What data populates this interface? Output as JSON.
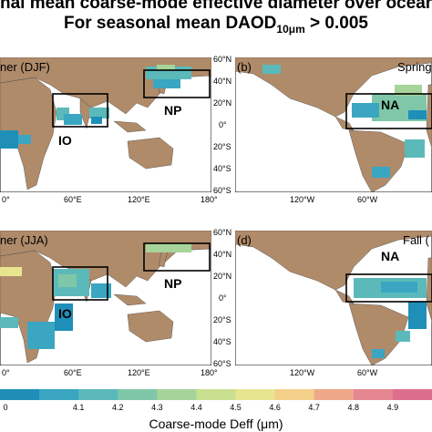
{
  "title_line1": "nal mean coarse-mode effective diameter over oceans",
  "title_line2_prefix": "For seasonal mean DAOD",
  "title_line2_sub": "10μm",
  "title_line2_suffix": " > 0.005",
  "panels": {
    "a": {
      "label": "ner (DJF)",
      "x_ticks": [
        "0°",
        "60°E",
        "120°E",
        "180°"
      ],
      "regions": [
        "IO",
        "NP"
      ]
    },
    "b": {
      "label": "(b)",
      "label2": "Spring",
      "x_ticks": [
        "120°W",
        "60°W"
      ],
      "regions": [
        "NA"
      ],
      "y_ticks": [
        "60°N",
        "40°N",
        "20°N",
        "0°",
        "20°S",
        "40°S",
        "60°S"
      ]
    },
    "c": {
      "label": "ner (JJA)",
      "x_ticks": [
        "0°",
        "60°E",
        "120°E",
        "180°"
      ],
      "regions": [
        "IO",
        "NP"
      ]
    },
    "d": {
      "label": "(d)",
      "label2": "Fall (",
      "x_ticks": [
        "120°W",
        "60°W"
      ],
      "regions": [
        "NA"
      ],
      "y_ticks": [
        "60°N",
        "40°N",
        "20°N",
        "0°",
        "20°S",
        "40°S",
        "60°S"
      ]
    }
  },
  "colorbar": {
    "ticks": [
      "0",
      "4.1",
      "4.2",
      "4.3",
      "4.4",
      "4.5",
      "4.6",
      "4.7",
      "4.8",
      "4.9"
    ],
    "colors": [
      "#1f8fb8",
      "#3aa6c2",
      "#5bbab9",
      "#7fc7a8",
      "#a6d49a",
      "#c9e090",
      "#e8e590",
      "#f3cf8a",
      "#efa88a",
      "#e58891",
      "#dd6f8e"
    ],
    "label": "Coarse-mode Deff (μm)"
  },
  "colors": {
    "land": "#b08b6a",
    "ocean": "#ffffff"
  }
}
